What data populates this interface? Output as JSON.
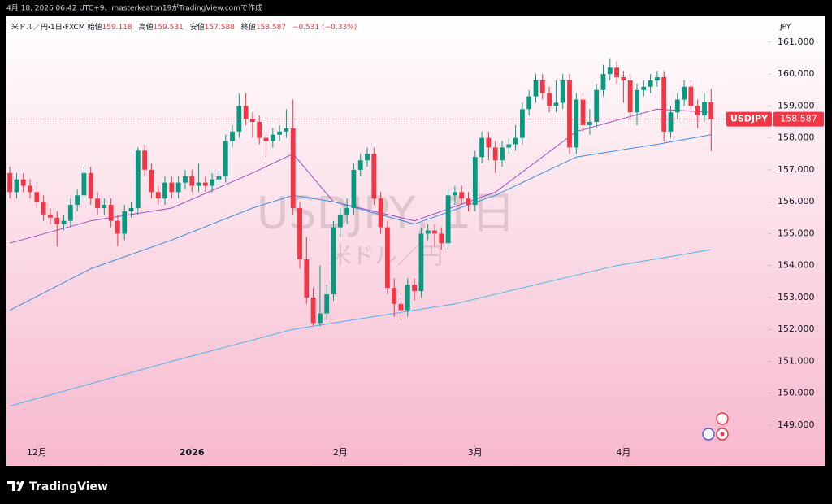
{
  "caption": "4月 18, 2026 06:42 UTC+9、masterkeaton19がTradingView.comで作成",
  "brand": "TradingView",
  "chart_data": {
    "type": "candlestick",
    "legend": {
      "symbol": "米ドル／円・1日・FXCM",
      "open": "始値",
      "high": "高値",
      "low": "安値",
      "close": "終値",
      "change": "−0.531 (−0.33%)"
    },
    "watermark": "USDJPY, 1日",
    "watermark_sub": "米ドル／円",
    "price_tag": "USDJPY",
    "unit": "JPY",
    "up_color": "#089981",
    "down_color": "#f23645",
    "categories": [
      null,
      null,
      null,
      null,
      null,
      null,
      null,
      null,
      null,
      null,
      null,
      null,
      null,
      null,
      null,
      null,
      null,
      null,
      null,
      null,
      null,
      null,
      null,
      null,
      null,
      null,
      null,
      null,
      null,
      null,
      null,
      null,
      null,
      null,
      null,
      null,
      null,
      null,
      null,
      null,
      null,
      null,
      null,
      null,
      null,
      null,
      null,
      null,
      null,
      null,
      null,
      null,
      null,
      null,
      null,
      null,
      null,
      null,
      null,
      null,
      null,
      null,
      null,
      null,
      null,
      null,
      null,
      null,
      null,
      null,
      null,
      null,
      null,
      null,
      null,
      null,
      null,
      null,
      null,
      null,
      null,
      null,
      null,
      null,
      null,
      null,
      null,
      null,
      null,
      null,
      null,
      null,
      null,
      null,
      null,
      null,
      null,
      null,
      null,
      null,
      null,
      null,
      null,
      null,
      null
    ],
    "open": [
      156.9,
      156.3,
      156.7,
      156.5,
      156.3,
      156.0,
      155.6,
      155.5,
      155.3,
      155.4,
      155.9,
      156.2,
      156.9,
      156.1,
      155.8,
      155.9,
      155.4,
      155.0,
      155.7,
      155.8,
      157.6,
      157.0,
      156.3,
      156.1,
      156.6,
      156.3,
      156.6,
      156.8,
      156.5,
      156.6,
      156.5,
      156.7,
      156.8,
      157.9,
      158.2,
      159.0,
      158.6,
      158.5,
      158.0,
      157.9,
      158.1,
      158.2,
      158.3,
      155.8,
      154.2,
      153.0,
      152.2,
      152.5,
      153.1,
      155.2,
      155.6,
      155.8,
      157.0,
      157.3,
      157.5,
      156.1,
      155.2,
      153.3,
      152.8,
      152.6,
      153.4,
      153.2,
      155.0,
      155.1,
      155.0,
      154.7,
      156.2,
      156.3,
      156.1,
      155.9,
      157.4,
      158.0,
      157.7,
      157.3,
      157.7,
      157.8,
      158.0,
      158.9,
      159.3,
      159.8,
      159.4,
      159.0,
      159.1,
      159.8,
      157.7,
      159.2,
      158.4,
      158.5,
      159.5,
      160.0,
      160.2,
      159.9,
      159.8,
      158.8,
      159.5,
      159.6,
      159.8,
      159.9,
      158.2,
      158.8,
      159.2,
      159.6,
      159.0,
      158.7,
      159.118
    ],
    "high": [
      157.1,
      156.9,
      156.9,
      156.7,
      156.5,
      156.2,
      155.8,
      155.7,
      155.6,
      156.1,
      156.4,
      157.1,
      157.1,
      156.3,
      156.1,
      156.1,
      155.6,
      155.9,
      156.0,
      157.7,
      157.8,
      157.2,
      156.5,
      156.8,
      156.8,
      156.8,
      157.0,
      157.0,
      157.2,
      156.8,
      156.9,
      157.0,
      158.1,
      158.4,
      159.4,
      159.4,
      158.8,
      158.7,
      158.2,
      158.3,
      158.4,
      158.9,
      159.2,
      156.0,
      154.9,
      153.3,
      154.0,
      153.4,
      155.4,
      155.8,
      156.1,
      157.2,
      157.5,
      157.7,
      157.7,
      156.3,
      155.4,
      153.6,
      153.0,
      153.6,
      153.6,
      155.2,
      155.3,
      155.3,
      155.2,
      156.4,
      156.5,
      156.5,
      156.3,
      157.6,
      158.2,
      158.2,
      157.9,
      157.9,
      158.0,
      158.4,
      159.1,
      159.5,
      160.0,
      160.0,
      159.6,
      159.8,
      160.0,
      160.0,
      159.4,
      159.4,
      158.9,
      159.7,
      160.3,
      160.5,
      160.4,
      160.1,
      160.0,
      159.7,
      159.8,
      160.0,
      160.1,
      160.1,
      159.0,
      159.4,
      159.8,
      159.8,
      159.2,
      159.4,
      159.531
    ],
    "low": [
      156.1,
      156.1,
      156.3,
      156.1,
      155.8,
      155.4,
      155.3,
      154.6,
      155.1,
      155.2,
      155.7,
      156.0,
      155.9,
      155.6,
      155.6,
      155.2,
      154.6,
      154.8,
      155.5,
      155.6,
      156.8,
      156.1,
      155.9,
      155.9,
      156.1,
      156.1,
      156.4,
      156.3,
      156.3,
      156.3,
      156.3,
      156.5,
      156.6,
      157.7,
      158.0,
      158.4,
      158.0,
      157.8,
      157.4,
      157.7,
      157.9,
      158.0,
      155.6,
      153.9,
      152.8,
      152.1,
      152.1,
      152.3,
      152.9,
      154.9,
      155.3,
      155.6,
      156.8,
      157.1,
      155.9,
      155.0,
      153.1,
      152.4,
      152.3,
      152.4,
      152.9,
      153.0,
      154.8,
      154.6,
      154.5,
      154.5,
      155.9,
      155.9,
      155.7,
      155.7,
      157.2,
      157.3,
      156.9,
      157.1,
      157.5,
      157.6,
      157.8,
      158.7,
      159.1,
      159.2,
      158.8,
      158.8,
      158.9,
      157.5,
      157.5,
      158.2,
      158.1,
      158.3,
      159.3,
      159.8,
      159.7,
      159.1,
      158.6,
      158.4,
      159.3,
      159.4,
      159.6,
      157.9,
      158.0,
      158.6,
      159.0,
      158.8,
      158.3,
      158.5,
      157.588
    ],
    "close": [
      156.3,
      156.7,
      156.5,
      156.3,
      156.0,
      155.6,
      155.5,
      155.3,
      155.4,
      155.9,
      156.2,
      156.9,
      156.1,
      155.8,
      155.9,
      155.4,
      155.0,
      155.7,
      155.8,
      157.6,
      157.0,
      156.3,
      156.1,
      156.6,
      156.3,
      156.6,
      156.8,
      156.5,
      156.6,
      156.5,
      156.7,
      156.8,
      157.9,
      158.2,
      159.0,
      158.6,
      158.5,
      158.0,
      157.9,
      158.1,
      158.2,
      158.3,
      155.8,
      154.2,
      153.0,
      152.2,
      152.5,
      153.1,
      155.2,
      155.6,
      155.8,
      157.0,
      157.3,
      157.5,
      156.1,
      155.2,
      153.3,
      152.8,
      152.6,
      153.4,
      153.2,
      155.0,
      155.1,
      155.0,
      154.7,
      156.2,
      156.3,
      156.1,
      155.9,
      157.4,
      158.0,
      157.7,
      157.3,
      157.7,
      157.8,
      158.0,
      158.9,
      159.3,
      159.8,
      159.4,
      159.0,
      159.1,
      159.8,
      157.7,
      159.2,
      158.4,
      158.5,
      159.5,
      160.0,
      160.2,
      159.9,
      159.8,
      158.8,
      159.5,
      159.6,
      159.8,
      159.9,
      158.2,
      158.8,
      159.2,
      159.6,
      159.0,
      158.7,
      159.118,
      158.587
    ],
    "lines": [
      {
        "color": "#a24fc9",
        "x": [
          0,
          12,
          24,
          36,
          42,
          48,
          60,
          72,
          84,
          96,
          104
        ],
        "values": [
          154.7,
          155.4,
          155.8,
          156.9,
          157.5,
          156.0,
          155.4,
          156.3,
          158.2,
          158.9,
          158.8
        ]
      },
      {
        "color": "#3d8fe0",
        "x": [
          0,
          12,
          24,
          36,
          42,
          48,
          60,
          72,
          84,
          96,
          104
        ],
        "values": [
          152.6,
          153.9,
          154.8,
          155.8,
          156.2,
          156.0,
          155.3,
          156.2,
          157.4,
          157.8,
          158.1
        ]
      },
      {
        "color": "#4cb4e8",
        "x": [
          0,
          24,
          42,
          54,
          66,
          78,
          90,
          104
        ],
        "values": [
          149.6,
          151.0,
          152.0,
          152.4,
          152.8,
          153.4,
          154.0,
          154.5
        ]
      }
    ],
    "xlim": [
      -0.5,
      112.4
    ],
    "xticks": [
      {
        "value": 4,
        "label": "12月"
      },
      {
        "value": 27,
        "label": "2026"
      },
      {
        "value": 49,
        "label": "2月"
      },
      {
        "value": 69,
        "label": "3月"
      },
      {
        "value": 91,
        "label": "4月"
      }
    ],
    "ylim": [
      148.44,
      161.76
    ],
    "yticks": [
      {
        "value": 149,
        "label": "149.000"
      },
      {
        "value": 150,
        "label": "150.000"
      },
      {
        "value": 151,
        "label": "151.000"
      },
      {
        "value": 152,
        "label": "152.000"
      },
      {
        "value": 153,
        "label": "153.000"
      },
      {
        "value": 154,
        "label": "154.000"
      },
      {
        "value": 155,
        "label": "155.000"
      },
      {
        "value": 156,
        "label": "156.000"
      },
      {
        "value": 157,
        "label": "157.000"
      },
      {
        "value": 158,
        "label": "158.000"
      },
      {
        "value": 159,
        "label": "159.000"
      },
      {
        "value": 160,
        "label": "160.000"
      },
      {
        "value": 161,
        "label": "161.000"
      }
    ]
  }
}
